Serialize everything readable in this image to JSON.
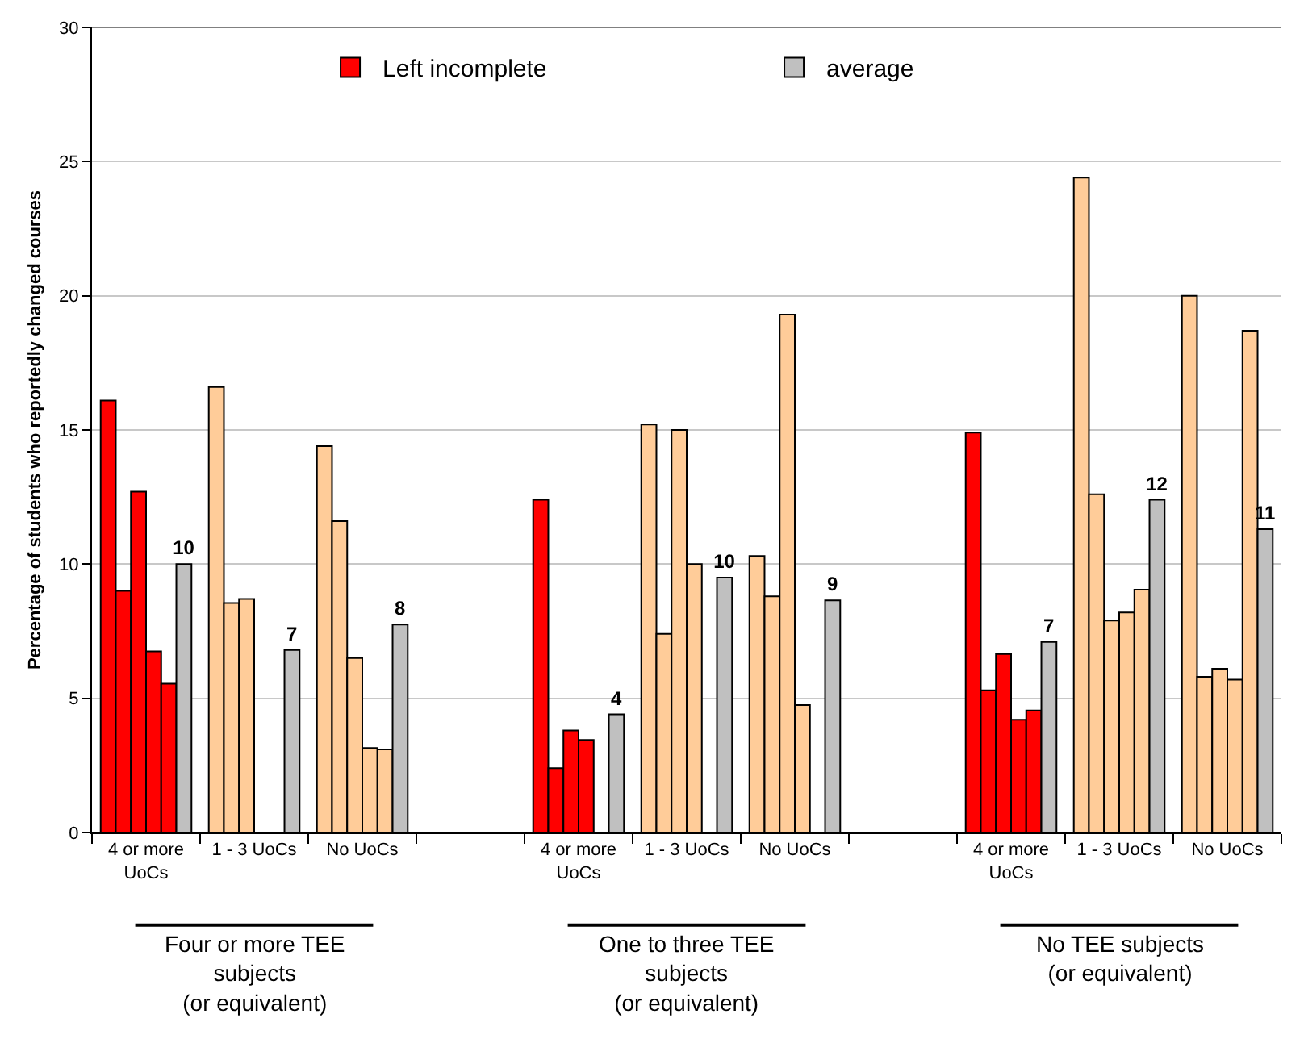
{
  "chart_data": {
    "type": "bar",
    "ylabel": "Percentage of students who reportedly changed courses",
    "categories": [
      "4 or more\nUoCs",
      "1 - 3 UoCs",
      "No UoCs",
      null,
      "4 or more\nUoCs",
      "1 - 3 UoCs",
      "No UoCs",
      null,
      "4 or more\nUoCs",
      "1 - 3 UoCs",
      "No UoCs"
    ],
    "series": [
      {
        "name": "Left incomplete",
        "colors": [
          "#ff0000",
          "#ffcc99",
          "#ffcc99",
          "#ff0000",
          "#ff0000",
          "#ffcc99",
          "#ffcc99",
          "#ff0000",
          "#ff0000",
          "#ffcc99",
          "#ffcc99"
        ],
        "values": [
          16.1,
          16.6,
          14.4,
          null,
          12.4,
          15.2,
          10.3,
          null,
          14.9,
          24.4,
          20.0
        ]
      },
      {
        "colors": [
          "#ff0000",
          "#ffcc99",
          "#ffcc99",
          "#ff0000",
          "#ff0000",
          "#ffcc99",
          "#ffcc99",
          "#ff0000",
          "#ff0000",
          "#ffcc99",
          "#ffcc99"
        ],
        "values": [
          9.0,
          8.55,
          11.6,
          null,
          2.4,
          7.4,
          8.8,
          null,
          5.3,
          12.6,
          5.8
        ]
      },
      {
        "colors": [
          "#ff0000",
          "#ffcc99",
          "#ffcc99",
          "#ff0000",
          "#ff0000",
          "#ffcc99",
          "#ffcc99",
          "#ff0000",
          "#ff0000",
          "#ffcc99",
          "#ffcc99"
        ],
        "values": [
          12.7,
          8.7,
          6.5,
          null,
          3.8,
          15.0,
          19.3,
          null,
          6.65,
          7.9,
          6.1
        ]
      },
      {
        "colors": [
          "#ff0000",
          "#ffcc99",
          "#ffcc99",
          "#ff0000",
          "#ff0000",
          "#ffcc99",
          "#ffcc99",
          "#ff0000",
          "#ff0000",
          "#ffcc99",
          "#ffcc99"
        ],
        "values": [
          6.75,
          null,
          3.15,
          null,
          3.45,
          10.0,
          4.75,
          null,
          4.2,
          8.2,
          5.7
        ]
      },
      {
        "colors": [
          "#ff0000",
          "#ffcc99",
          "#ffcc99",
          "#ff0000",
          "#ff0000",
          "#ffcc99",
          "#ffcc99",
          "#ff0000",
          "#ff0000",
          "#ffcc99",
          "#ffcc99"
        ],
        "values": [
          5.55,
          null,
          3.1,
          null,
          null,
          null,
          null,
          null,
          4.55,
          9.05,
          18.7
        ]
      },
      {
        "name": "average",
        "color": "#c0c0c0",
        "values": [
          10.0,
          6.8,
          7.75,
          null,
          4.4,
          9.5,
          8.65,
          null,
          7.1,
          12.4,
          11.3
        ],
        "value_labels": [
          "10",
          "7",
          "8",
          null,
          "4",
          "10",
          "9",
          null,
          "7",
          "12",
          "11"
        ]
      }
    ],
    "ylim": [
      0,
      30
    ],
    "yticks": [
      0,
      5,
      10,
      15,
      20,
      25,
      30
    ],
    "grid": "y",
    "legend": "top",
    "annotations": [
      "Four or more TEE\nsubjects\n(or equivalent)",
      "One to three TEE\nsubjects\n(or equivalent)",
      "No TEE subjects\n(or equivalent)"
    ]
  }
}
